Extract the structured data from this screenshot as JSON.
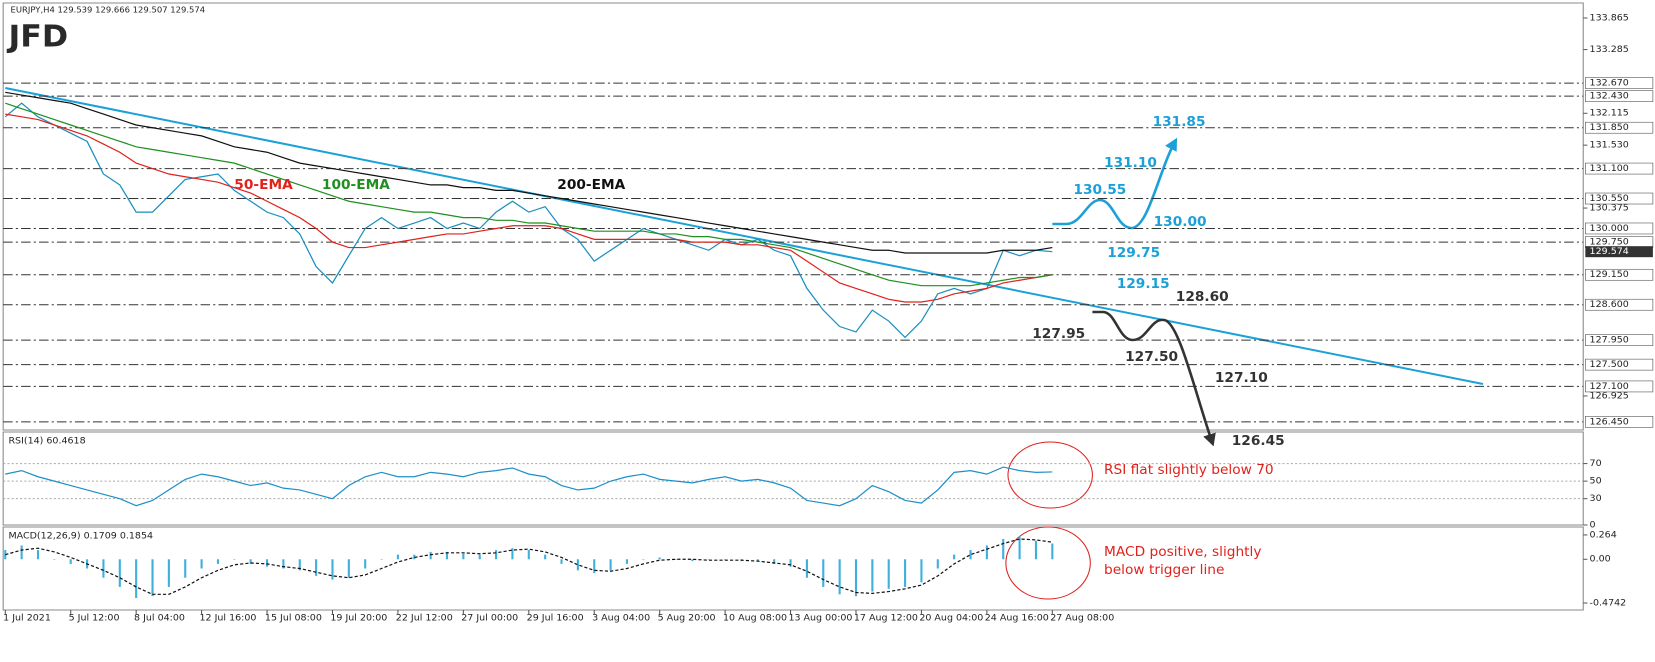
{
  "header": "EURJPY,H4  129.539 129.666 129.507 129.574",
  "logo": "JFD",
  "chart_data": [
    {
      "type": "line",
      "ylim": [
        126.3,
        134.14
      ],
      "yticks": [
        133.865,
        133.285,
        132.115,
        {
          "value": 131.53,
          "label": "131.530"
        },
        130.375,
        126.925
      ],
      "levels": [
        {
          "value": 132.67,
          "label": "132.670"
        },
        {
          "value": 132.43,
          "label": "132.430"
        },
        {
          "value": 131.85,
          "label": "131.850"
        },
        {
          "value": 131.1,
          "label": "131.100"
        },
        {
          "value": 130.55,
          "label": "130.550"
        },
        {
          "value": 130.0,
          "label": "130.000"
        },
        {
          "value": 129.75,
          "label": "129.750"
        },
        {
          "value": 129.15,
          "label": "129.150"
        },
        {
          "value": 128.6,
          "label": "128.600"
        },
        {
          "value": 127.95,
          "label": "127.950"
        },
        {
          "value": 127.5,
          "label": "127.500"
        },
        {
          "value": 127.1,
          "label": "127.100"
        },
        {
          "value": 126.45,
          "label": "126.450"
        }
      ],
      "series": [
        {
          "color": "#1a8fbf",
          "values": [
            132.05,
            132.3,
            132.05,
            131.9,
            131.75,
            131.6,
            131.0,
            130.8,
            130.3,
            130.3,
            130.6,
            130.9,
            130.95,
            131.0,
            130.7,
            130.5,
            130.3,
            130.2,
            129.9,
            129.3,
            129.0,
            129.5,
            130.0,
            130.2,
            130.0,
            130.1,
            130.2,
            130.0,
            130.1,
            130.0,
            130.3,
            130.5,
            130.3,
            130.4,
            130.0,
            129.8,
            129.4,
            129.6,
            129.8,
            130.0,
            129.9,
            129.8,
            129.7,
            129.6,
            129.8,
            129.7,
            129.8,
            129.6,
            129.5,
            128.9,
            128.5,
            128.2,
            128.1,
            128.5,
            128.3,
            128.0,
            128.3,
            128.8,
            128.9,
            128.8,
            128.9,
            129.6,
            129.5,
            129.6,
            129.574
          ]
        },
        {
          "name": "50-EMA",
          "color": "#e0221c",
          "values": [
            132.1,
            132.05,
            132.0,
            131.9,
            131.8,
            131.7,
            131.55,
            131.4,
            131.2,
            131.1,
            131.0,
            130.95,
            130.9,
            130.85,
            130.75,
            130.65,
            130.5,
            130.35,
            130.2,
            130.0,
            129.75,
            129.65,
            129.65,
            129.7,
            129.75,
            129.8,
            129.85,
            129.9,
            129.9,
            129.95,
            130.0,
            130.05,
            130.05,
            130.05,
            130.0,
            129.9,
            129.8,
            129.8,
            129.8,
            129.8,
            129.8,
            129.8,
            129.75,
            129.75,
            129.75,
            129.7,
            129.7,
            129.65,
            129.6,
            129.4,
            129.2,
            129.0,
            128.9,
            128.8,
            128.7,
            128.65,
            128.65,
            128.7,
            128.8,
            128.85,
            128.9,
            129.0,
            129.05,
            129.1,
            129.15
          ]
        },
        {
          "name": "100-EMA",
          "color": "#1f8f1f",
          "values": [
            132.3,
            132.2,
            132.1,
            132.0,
            131.9,
            131.8,
            131.7,
            131.6,
            131.5,
            131.45,
            131.4,
            131.35,
            131.3,
            131.25,
            131.2,
            131.1,
            131.0,
            130.9,
            130.8,
            130.7,
            130.6,
            130.5,
            130.45,
            130.4,
            130.35,
            130.3,
            130.3,
            130.25,
            130.2,
            130.2,
            130.15,
            130.15,
            130.1,
            130.1,
            130.05,
            130.0,
            129.95,
            129.95,
            129.95,
            129.95,
            129.9,
            129.9,
            129.85,
            129.85,
            129.8,
            129.8,
            129.75,
            129.7,
            129.65,
            129.55,
            129.45,
            129.35,
            129.25,
            129.15,
            129.05,
            129.0,
            128.95,
            128.95,
            128.95,
            128.95,
            129.0,
            129.05,
            129.1,
            129.1,
            129.15
          ]
        },
        {
          "name": "200-EMA",
          "color": "#111111",
          "values": [
            132.5,
            132.45,
            132.4,
            132.35,
            132.3,
            132.2,
            132.1,
            132.0,
            131.9,
            131.85,
            131.8,
            131.75,
            131.7,
            131.6,
            131.5,
            131.45,
            131.4,
            131.3,
            131.2,
            131.15,
            131.1,
            131.05,
            131.0,
            130.95,
            130.9,
            130.85,
            130.8,
            130.8,
            130.75,
            130.75,
            130.7,
            130.7,
            130.65,
            130.6,
            130.55,
            130.5,
            130.45,
            130.4,
            130.35,
            130.3,
            130.25,
            130.2,
            130.15,
            130.1,
            130.05,
            130.0,
            129.95,
            129.9,
            129.85,
            129.8,
            129.75,
            129.7,
            129.65,
            129.6,
            129.6,
            129.55,
            129.55,
            129.55,
            129.55,
            129.55,
            129.55,
            129.6,
            129.6,
            129.6,
            129.65
          ]
        }
      ],
      "annotations": [
        {
          "text": "131.85",
          "color": "#1ba1d8"
        },
        {
          "text": "131.10",
          "color": "#1ba1d8"
        },
        {
          "text": "130.55",
          "color": "#1ba1d8"
        },
        {
          "text": "130.00",
          "color": "#1ba1d8"
        },
        {
          "text": "129.75",
          "color": "#1ba1d8"
        },
        {
          "text": "129.15",
          "color": "#1ba1d8"
        },
        {
          "text": "128.60",
          "color": "#333333"
        },
        {
          "text": "127.95",
          "color": "#333333"
        },
        {
          "text": "127.50",
          "color": "#333333"
        },
        {
          "text": "127.10",
          "color": "#333333"
        },
        {
          "text": "126.45",
          "color": "#333333"
        }
      ]
    },
    {
      "type": "line",
      "title": "RSI(14) 60.4618",
      "ylim": [
        0,
        106
      ],
      "yticks": [
        0,
        30,
        50,
        70
      ],
      "series": [
        {
          "color": "#1e90c8",
          "values": [
            58,
            62,
            55,
            50,
            45,
            40,
            35,
            30,
            22,
            28,
            40,
            52,
            58,
            55,
            50,
            45,
            48,
            42,
            40,
            35,
            30,
            45,
            55,
            60,
            55,
            55,
            60,
            58,
            55,
            60,
            62,
            65,
            58,
            55,
            45,
            40,
            42,
            50,
            55,
            58,
            52,
            50,
            48,
            52,
            55,
            50,
            52,
            48,
            42,
            28,
            25,
            22,
            30,
            45,
            38,
            28,
            25,
            40,
            60,
            62,
            58,
            66,
            62,
            60,
            60.4618
          ]
        }
      ],
      "annotation": "RSI flat slightly below 70"
    },
    {
      "type": "bar",
      "title": "MACD(12,26,9) 0.1709 0.1854",
      "ylim": [
        -0.55,
        0.35
      ],
      "yticks": [
        0.264,
        {
          "value": 0,
          "label": "0.00"
        },
        -0.4742
      ],
      "categories": [
        "1 Jul 2021",
        null,
        null,
        null,
        "5 Jul 12:00",
        null,
        null,
        null,
        "8 Jul 04:00",
        null,
        null,
        null,
        "12 Jul 16:00",
        null,
        null,
        null,
        "15 Jul 08:00",
        null,
        null,
        null,
        "19 Jul 20:00",
        null,
        null,
        null,
        "22 Jul 12:00",
        null,
        null,
        null,
        "27 Jul 00:00",
        null,
        null,
        null,
        "29 Jul 16:00",
        null,
        null,
        null,
        "3 Aug 04:00",
        null,
        null,
        null,
        "5 Aug 20:00",
        null,
        null,
        null,
        "10 Aug 08:00",
        null,
        null,
        null,
        "13 Aug 00:00",
        null,
        null,
        null,
        "17 Aug 12:00",
        null,
        null,
        null,
        "20 Aug 04:00",
        null,
        null,
        null,
        "24 Aug 16:00",
        null,
        null,
        null,
        "27 Aug 08:00"
      ],
      "series": [
        {
          "type": "bar",
          "color": "#3fb0dc",
          "values": [
            0.1,
            0.15,
            0.1,
            0.0,
            -0.05,
            -0.1,
            -0.2,
            -0.3,
            -0.42,
            -0.4,
            -0.3,
            -0.2,
            -0.1,
            -0.05,
            0.0,
            -0.05,
            -0.08,
            -0.1,
            -0.12,
            -0.18,
            -0.22,
            -0.2,
            -0.1,
            0.0,
            0.05,
            0.05,
            0.08,
            0.08,
            0.06,
            0.05,
            0.1,
            0.12,
            0.1,
            0.05,
            -0.05,
            -0.12,
            -0.15,
            -0.12,
            -0.05,
            0.0,
            0.02,
            0.0,
            -0.02,
            0.0,
            0.0,
            -0.02,
            -0.02,
            -0.05,
            -0.08,
            -0.2,
            -0.3,
            -0.38,
            -0.4,
            -0.35,
            -0.32,
            -0.3,
            -0.25,
            -0.1,
            0.05,
            0.1,
            0.15,
            0.22,
            0.25,
            0.2,
            0.1709
          ]
        },
        {
          "type": "line",
          "color": "#111111",
          "values": [
            0.05,
            0.1,
            0.12,
            0.08,
            0.02,
            -0.05,
            -0.12,
            -0.2,
            -0.3,
            -0.38,
            -0.38,
            -0.3,
            -0.2,
            -0.12,
            -0.06,
            -0.04,
            -0.05,
            -0.08,
            -0.1,
            -0.14,
            -0.18,
            -0.2,
            -0.17,
            -0.1,
            -0.03,
            0.02,
            0.05,
            0.07,
            0.07,
            0.06,
            0.07,
            0.1,
            0.11,
            0.08,
            0.02,
            -0.06,
            -0.12,
            -0.13,
            -0.1,
            -0.05,
            -0.01,
            0.0,
            0.0,
            -0.01,
            -0.01,
            -0.01,
            -0.02,
            -0.04,
            -0.06,
            -0.13,
            -0.22,
            -0.3,
            -0.36,
            -0.37,
            -0.35,
            -0.32,
            -0.28,
            -0.18,
            -0.05,
            0.05,
            0.11,
            0.17,
            0.22,
            0.21,
            0.1854
          ]
        }
      ],
      "annotation": [
        "MACD positive, slightly",
        "below trigger line"
      ]
    }
  ]
}
